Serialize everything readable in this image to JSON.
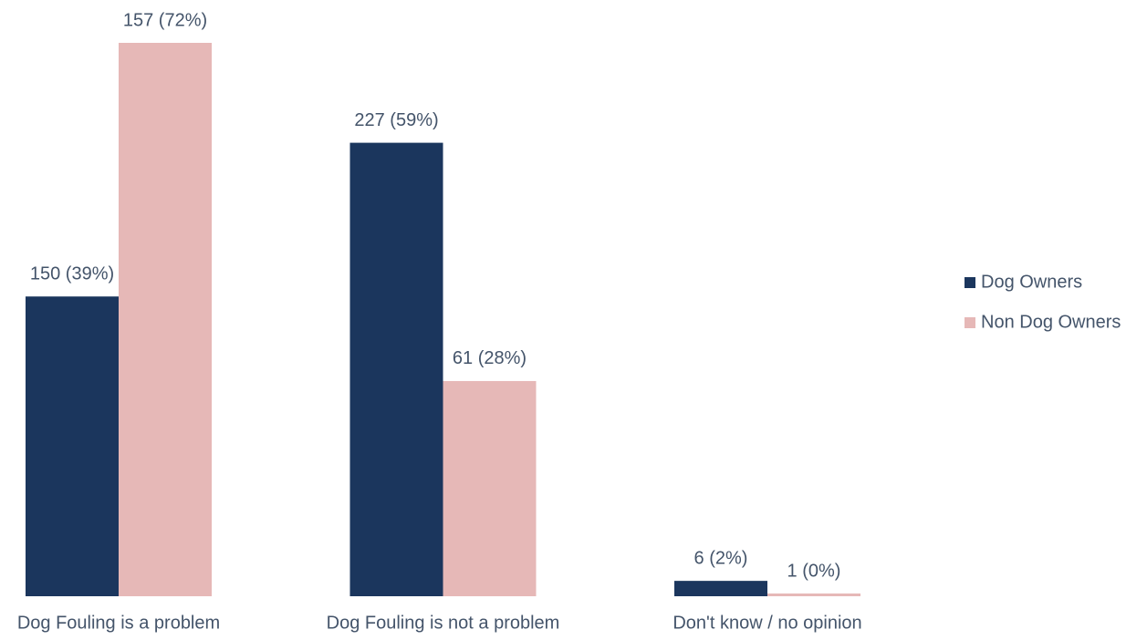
{
  "chart_data": {
    "type": "bar",
    "categories": [
      "Dog Fouling is a problem",
      "Dog Fouling is not a problem",
      "Don't know / no opinion"
    ],
    "series": [
      {
        "name": "Dog Owners",
        "color": "#1b365d",
        "values": [
          39,
          59,
          2
        ],
        "value_labels": [
          "150 (39%)",
          "227 (59%)",
          "6 (2%)"
        ]
      },
      {
        "name": "Non Dog Owners",
        "color": "#e6b8b7",
        "values": [
          72,
          28,
          0
        ],
        "value_labels": [
          "157 (72%)",
          "61 (28%)",
          "1 (0%)"
        ]
      }
    ],
    "legend": "right"
  }
}
